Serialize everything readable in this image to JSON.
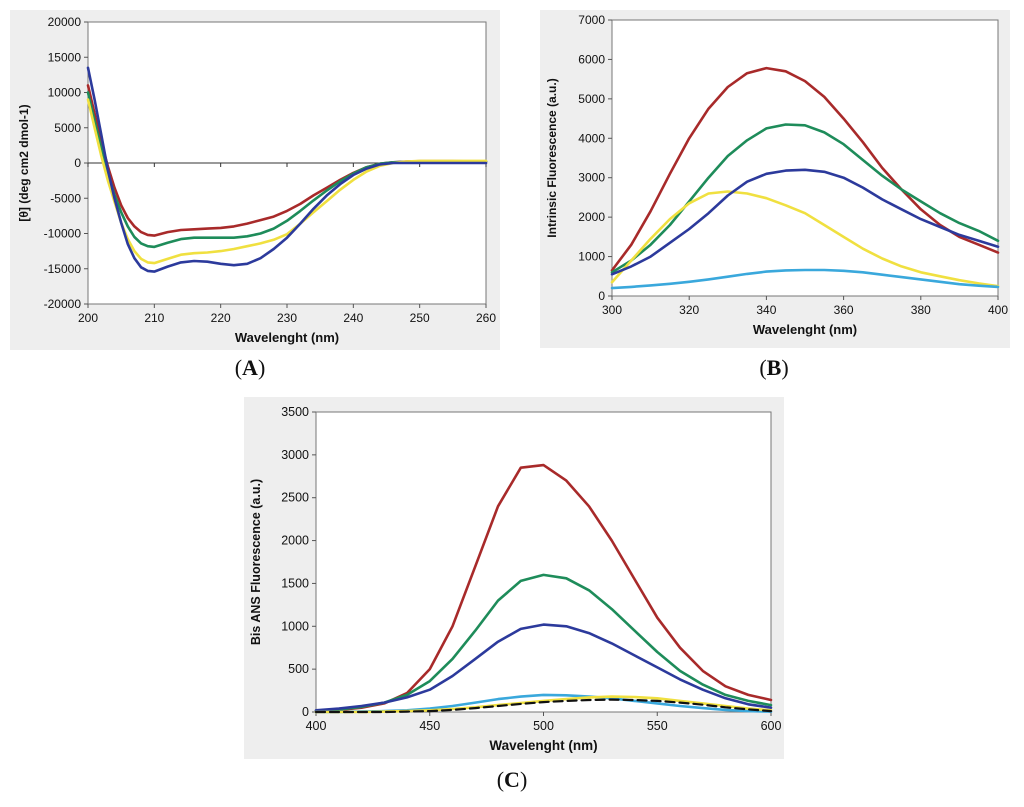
{
  "chart_data": [
    {
      "id": "A",
      "type": "line",
      "caption": "A",
      "xlabel": "Wavelenght (nm)",
      "ylabel": "[θ] (deg cm2 dmol-1)",
      "xlim": [
        200,
        260
      ],
      "ylim": [
        -20000,
        20000
      ],
      "xticks": [
        200,
        210,
        220,
        230,
        240,
        250,
        260
      ],
      "yticks": [
        -20000,
        -15000,
        -10000,
        -5000,
        0,
        5000,
        10000,
        15000,
        20000
      ],
      "zero_axis": true,
      "series": [
        {
          "name": "red",
          "color": "#a82a2a",
          "x": [
            200,
            201,
            202,
            203,
            204,
            205,
            206,
            207,
            208,
            209,
            210,
            212,
            214,
            216,
            218,
            220,
            222,
            224,
            226,
            228,
            230,
            232,
            234,
            236,
            238,
            240,
            242,
            244,
            246,
            248,
            250,
            255,
            260
          ],
          "y": [
            11000,
            7000,
            3000,
            -500,
            -3500,
            -6000,
            -7800,
            -9000,
            -9800,
            -10200,
            -10300,
            -9800,
            -9500,
            -9400,
            -9300,
            -9200,
            -9000,
            -8600,
            -8100,
            -7600,
            -6800,
            -5800,
            -4600,
            -3500,
            -2400,
            -1400,
            -600,
            -100,
            100,
            200,
            250,
            250,
            200
          ]
        },
        {
          "name": "green",
          "color": "#1e8c5a",
          "x": [
            200,
            201,
            202,
            203,
            204,
            205,
            206,
            207,
            208,
            209,
            210,
            212,
            214,
            216,
            218,
            220,
            222,
            224,
            226,
            228,
            230,
            232,
            234,
            236,
            238,
            240,
            242,
            244,
            246,
            248,
            250,
            255,
            260
          ],
          "y": [
            10000,
            6000,
            2000,
            -1500,
            -4500,
            -7000,
            -9000,
            -10500,
            -11400,
            -11800,
            -11900,
            -11300,
            -10800,
            -10600,
            -10600,
            -10600,
            -10600,
            -10400,
            -10000,
            -9300,
            -8200,
            -6800,
            -5300,
            -3900,
            -2600,
            -1500,
            -600,
            -100,
            100,
            150,
            200,
            200,
            200
          ]
        },
        {
          "name": "yellow",
          "color": "#f0e040",
          "x": [
            200,
            201,
            202,
            203,
            204,
            205,
            206,
            207,
            208,
            209,
            210,
            212,
            214,
            216,
            218,
            220,
            222,
            224,
            226,
            228,
            230,
            232,
            234,
            236,
            238,
            240,
            242,
            244,
            246,
            248,
            250,
            255,
            260
          ],
          "y": [
            9000,
            5000,
            1000,
            -2500,
            -5500,
            -8500,
            -10800,
            -12500,
            -13600,
            -14100,
            -14200,
            -13600,
            -13000,
            -12800,
            -12700,
            -12500,
            -12200,
            -11800,
            -11400,
            -10900,
            -10100,
            -8600,
            -7000,
            -5400,
            -3800,
            -2400,
            -1200,
            -400,
            0,
            200,
            300,
            300,
            300
          ]
        },
        {
          "name": "blue",
          "color": "#2c3a9c",
          "x": [
            200,
            201,
            202,
            203,
            204,
            205,
            206,
            207,
            208,
            209,
            210,
            212,
            214,
            216,
            218,
            220,
            222,
            224,
            226,
            228,
            230,
            232,
            234,
            236,
            238,
            240,
            242,
            244,
            246,
            248,
            250,
            255,
            260
          ],
          "y": [
            13500,
            9000,
            4000,
            -1000,
            -5000,
            -8500,
            -11500,
            -13500,
            -14800,
            -15300,
            -15400,
            -14700,
            -14100,
            -13900,
            -14000,
            -14300,
            -14500,
            -14300,
            -13500,
            -12200,
            -10600,
            -8600,
            -6500,
            -4600,
            -3000,
            -1700,
            -800,
            -200,
            0,
            0,
            0,
            0,
            0
          ]
        }
      ]
    },
    {
      "id": "B",
      "type": "line",
      "caption": "B",
      "xlabel": "Wavelenght (nm)",
      "ylabel": "Intrinsic Fluorescence (a.u.)",
      "xlim": [
        300,
        400
      ],
      "ylim": [
        0,
        7000
      ],
      "xticks": [
        300,
        320,
        340,
        360,
        380,
        400
      ],
      "yticks": [
        0,
        1000,
        2000,
        3000,
        4000,
        5000,
        6000,
        7000
      ],
      "zero_axis": false,
      "series": [
        {
          "name": "red",
          "color": "#a82a2a",
          "x": [
            300,
            305,
            310,
            315,
            320,
            325,
            330,
            335,
            340,
            345,
            350,
            355,
            360,
            365,
            370,
            375,
            380,
            385,
            390,
            395,
            400
          ],
          "y": [
            650,
            1300,
            2150,
            3100,
            4000,
            4750,
            5300,
            5650,
            5780,
            5700,
            5450,
            5050,
            4500,
            3900,
            3250,
            2700,
            2200,
            1800,
            1500,
            1300,
            1100
          ]
        },
        {
          "name": "green",
          "color": "#1e8c5a",
          "x": [
            300,
            305,
            310,
            315,
            320,
            325,
            330,
            335,
            340,
            345,
            350,
            355,
            360,
            365,
            370,
            375,
            380,
            385,
            390,
            395,
            400
          ],
          "y": [
            600,
            900,
            1300,
            1800,
            2400,
            3000,
            3550,
            3950,
            4250,
            4350,
            4330,
            4150,
            3850,
            3450,
            3050,
            2700,
            2400,
            2100,
            1850,
            1650,
            1400
          ]
        },
        {
          "name": "yellow",
          "color": "#f0e040",
          "x": [
            300,
            305,
            310,
            315,
            320,
            325,
            330,
            335,
            340,
            345,
            350,
            355,
            360,
            365,
            370,
            375,
            380,
            385,
            390,
            395,
            400
          ],
          "y": [
            350,
            900,
            1450,
            1950,
            2350,
            2600,
            2650,
            2600,
            2480,
            2300,
            2100,
            1800,
            1500,
            1200,
            950,
            750,
            600,
            500,
            400,
            320,
            250
          ]
        },
        {
          "name": "blue",
          "color": "#2c3a9c",
          "x": [
            300,
            305,
            310,
            315,
            320,
            325,
            330,
            335,
            340,
            345,
            350,
            355,
            360,
            365,
            370,
            375,
            380,
            385,
            390,
            395,
            400
          ],
          "y": [
            550,
            750,
            1000,
            1350,
            1700,
            2100,
            2550,
            2900,
            3100,
            3180,
            3200,
            3150,
            3000,
            2750,
            2450,
            2200,
            1950,
            1750,
            1550,
            1400,
            1250
          ]
        },
        {
          "name": "light-blue",
          "color": "#3aa8dc",
          "x": [
            300,
            305,
            310,
            315,
            320,
            325,
            330,
            335,
            340,
            345,
            350,
            355,
            360,
            365,
            370,
            375,
            380,
            385,
            390,
            395,
            400
          ],
          "y": [
            200,
            230,
            270,
            310,
            360,
            420,
            490,
            560,
            620,
            650,
            660,
            660,
            640,
            600,
            540,
            480,
            420,
            360,
            300,
            260,
            230
          ]
        }
      ]
    },
    {
      "id": "C",
      "type": "line",
      "caption": "C",
      "xlabel": "Wavelenght (nm)",
      "ylabel": "Bis ANS Fluorescence (a.u.)",
      "xlim": [
        400,
        600
      ],
      "ylim": [
        0,
        3500
      ],
      "xticks": [
        400,
        450,
        500,
        550,
        600
      ],
      "yticks": [
        0,
        500,
        1000,
        1500,
        2000,
        2500,
        3000,
        3500
      ],
      "zero_axis": false,
      "series": [
        {
          "name": "red",
          "color": "#a82a2a",
          "x": [
            400,
            410,
            420,
            430,
            440,
            450,
            460,
            470,
            480,
            490,
            500,
            510,
            520,
            530,
            540,
            550,
            560,
            570,
            580,
            590,
            600
          ],
          "y": [
            10,
            25,
            50,
            100,
            220,
            500,
            1000,
            1700,
            2400,
            2850,
            2880,
            2700,
            2400,
            2000,
            1550,
            1100,
            750,
            480,
            300,
            200,
            140
          ]
        },
        {
          "name": "green",
          "color": "#1e8c5a",
          "x": [
            400,
            410,
            420,
            430,
            440,
            450,
            460,
            470,
            480,
            490,
            500,
            510,
            520,
            530,
            540,
            550,
            560,
            570,
            580,
            590,
            600
          ],
          "y": [
            15,
            30,
            60,
            110,
            200,
            360,
            620,
            950,
            1300,
            1530,
            1600,
            1560,
            1420,
            1200,
            950,
            700,
            480,
            320,
            200,
            130,
            80
          ]
        },
        {
          "name": "blue",
          "color": "#2c3a9c",
          "x": [
            400,
            410,
            420,
            430,
            440,
            450,
            460,
            470,
            480,
            490,
            500,
            510,
            520,
            530,
            540,
            550,
            560,
            570,
            580,
            590,
            600
          ],
          "y": [
            20,
            40,
            70,
            110,
            170,
            260,
            420,
            620,
            820,
            970,
            1020,
            1000,
            920,
            800,
            660,
            520,
            380,
            260,
            160,
            90,
            50
          ]
        },
        {
          "name": "light-blue",
          "color": "#3aa8dc",
          "x": [
            400,
            410,
            420,
            430,
            440,
            450,
            460,
            470,
            480,
            490,
            500,
            510,
            520,
            530,
            540,
            550,
            560,
            570,
            580,
            590,
            600
          ],
          "y": [
            0,
            0,
            5,
            10,
            20,
            40,
            70,
            110,
            150,
            180,
            200,
            195,
            180,
            160,
            130,
            100,
            70,
            45,
            25,
            10,
            5
          ]
        },
        {
          "name": "yellow",
          "color": "#f0e040",
          "x": [
            400,
            410,
            420,
            430,
            440,
            450,
            460,
            470,
            480,
            490,
            500,
            510,
            520,
            530,
            540,
            550,
            560,
            570,
            580,
            590,
            600
          ],
          "y": [
            0,
            0,
            0,
            5,
            10,
            20,
            35,
            55,
            80,
            105,
            130,
            150,
            170,
            180,
            175,
            160,
            130,
            100,
            70,
            40,
            20
          ]
        },
        {
          "name": "black-dashed",
          "color": "#111111",
          "dashed": true,
          "x": [
            400,
            410,
            420,
            430,
            440,
            450,
            460,
            470,
            480,
            490,
            500,
            510,
            520,
            530,
            540,
            550,
            560,
            570,
            580,
            590,
            600
          ],
          "y": [
            0,
            0,
            0,
            0,
            5,
            10,
            25,
            45,
            70,
            95,
            115,
            130,
            140,
            145,
            140,
            130,
            110,
            85,
            55,
            30,
            10
          ]
        }
      ]
    }
  ],
  "captions": {
    "A": "A",
    "B": "B",
    "C": "C"
  }
}
